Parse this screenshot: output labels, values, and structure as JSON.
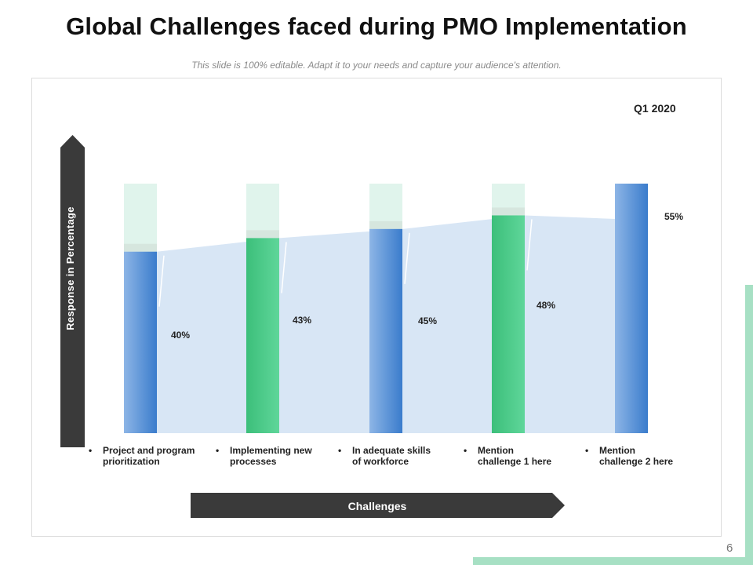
{
  "title": "Global Challenges faced during PMO Implementation",
  "subtitle": "This slide is 100% editable. Adapt it to your needs and capture your audience's attention.",
  "page_number": "6",
  "colors": {
    "blue": "#3a7ccc",
    "green": "#3cbf7a",
    "track": "#e0f4ec",
    "area": "#d8e6f5",
    "arrow": "#3a3a3a",
    "accent": "#a7e0c4"
  },
  "chart_data": {
    "type": "bar",
    "title": "Q1 2020",
    "xlabel": "Challenges",
    "ylabel": "Response in Percentage",
    "ylim": [
      0,
      55
    ],
    "categories": [
      "Project and program prioritization",
      "Implementing new processes",
      "In adequate skills of workforce",
      "Mention challenge 1 here",
      "Mention challenge 2 here"
    ],
    "category_lines": [
      [
        "Project and program",
        "prioritization"
      ],
      [
        "Implementing new",
        "processes"
      ],
      [
        "In adequate skills",
        "of workforce"
      ],
      [
        "Mention",
        "challenge 1 here"
      ],
      [
        "Mention",
        "challenge 2 here"
      ]
    ],
    "values": [
      40,
      43,
      45,
      48,
      55
    ],
    "data_labels": [
      "40%",
      "43%",
      "45%",
      "48%",
      "55%"
    ],
    "bar_colors": [
      "blue",
      "green",
      "blue",
      "green",
      "blue"
    ]
  }
}
